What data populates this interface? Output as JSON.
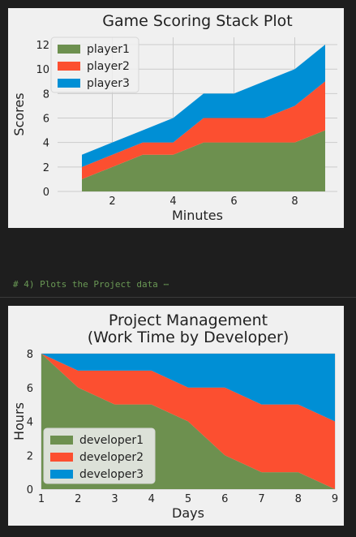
{
  "code_cell": {
    "comment": "# 4) Plots the Project data",
    "ellipsis": "⋯"
  },
  "colors": {
    "background": "#1e1e1e",
    "figure": "#f0f0f0",
    "grid": "#cbcbcb",
    "series": [
      "#6d904f",
      "#fc4f30",
      "#008fd5"
    ]
  },
  "chart_data": [
    {
      "type": "area",
      "stacked": true,
      "title": "Game Scoring Stack Plot",
      "xlabel": "Minutes",
      "ylabel": "Scores",
      "x": [
        1,
        2,
        3,
        4,
        5,
        6,
        7,
        8,
        9
      ],
      "series": [
        {
          "name": "player1",
          "values": [
            1,
            2,
            3,
            3,
            4,
            4,
            4,
            4,
            5
          ]
        },
        {
          "name": "player2",
          "values": [
            1,
            1,
            1,
            1,
            2,
            2,
            2,
            3,
            4
          ]
        },
        {
          "name": "player3",
          "values": [
            1,
            1,
            1,
            2,
            2,
            2,
            3,
            3,
            3
          ]
        }
      ],
      "xticks": [
        2,
        4,
        6,
        8
      ],
      "yticks": [
        0,
        2,
        4,
        6,
        8,
        10,
        12
      ],
      "xlim": [
        0.2,
        9.4
      ],
      "ylim": [
        0,
        12.6
      ],
      "grid": true,
      "legend_position": "top-left"
    },
    {
      "type": "area",
      "stacked": true,
      "title": "Project Management\n(Work Time by Developer)",
      "xlabel": "Days",
      "ylabel": "Hours",
      "x": [
        1,
        2,
        3,
        4,
        5,
        6,
        7,
        8,
        9
      ],
      "series": [
        {
          "name": "developer1",
          "values": [
            8,
            6,
            5,
            5,
            4,
            2,
            1,
            1,
            0
          ]
        },
        {
          "name": "developer2",
          "values": [
            0,
            1,
            2,
            2,
            2,
            4,
            4,
            4,
            4
          ]
        },
        {
          "name": "developer3",
          "values": [
            0,
            1,
            1,
            1,
            2,
            2,
            3,
            3,
            4
          ]
        }
      ],
      "xticks": [
        1,
        2,
        3,
        4,
        5,
        6,
        7,
        8,
        9
      ],
      "yticks": [
        0,
        2,
        4,
        6,
        8
      ],
      "xlim": [
        1,
        9
      ],
      "ylim": [
        0,
        8
      ],
      "grid": true,
      "legend_position": "lower-left"
    }
  ]
}
